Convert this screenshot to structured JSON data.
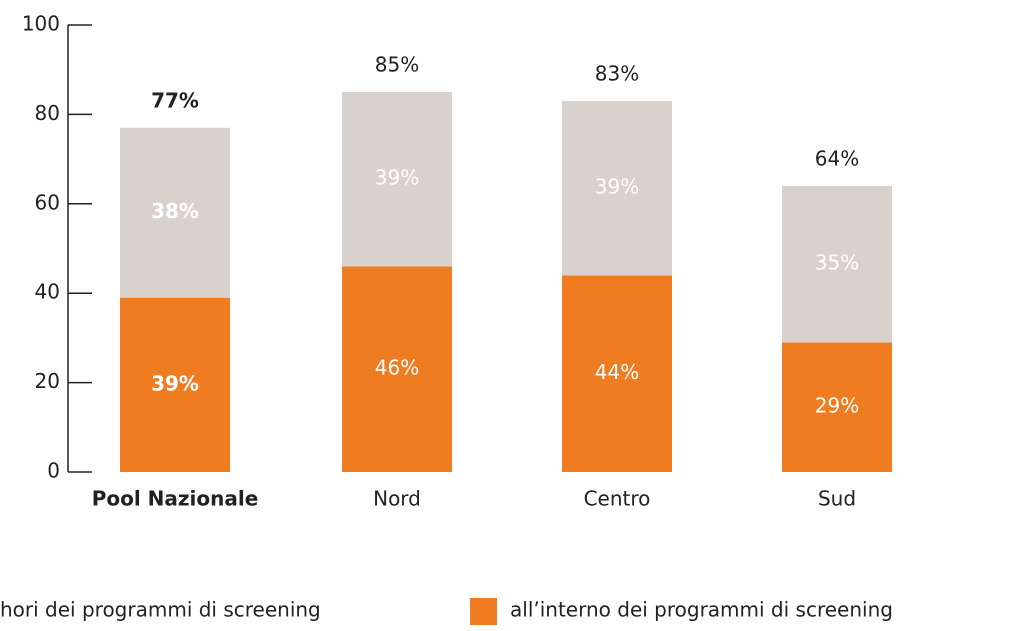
{
  "chart_data": {
    "type": "stacked_bar",
    "categories": [
      "Pool Nazionale",
      "Nord",
      "Centro",
      "Sud"
    ],
    "series": [
      {
        "name": "all’interno dei programmi di screening",
        "color": "#f07c22",
        "values": [
          39,
          46,
          44,
          29
        ],
        "value_labels": [
          "39%",
          "46%",
          "44%",
          "29%"
        ]
      },
      {
        "name": "hori dei programmi di screening",
        "color": "#d9d2cc",
        "values": [
          38,
          39,
          39,
          35
        ],
        "value_labels": [
          "38%",
          "39%",
          "39%",
          "35%"
        ]
      }
    ],
    "totals": [
      77,
      85,
      83,
      64
    ],
    "total_labels": [
      "77%",
      "85%",
      "83%",
      "64%"
    ],
    "ylim": [
      0,
      100
    ],
    "yticks": [
      0,
      20,
      40,
      60,
      80,
      100
    ]
  }
}
